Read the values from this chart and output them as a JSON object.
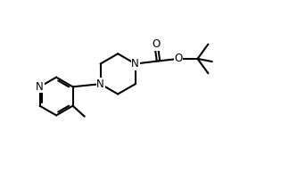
{
  "background_color": "#ffffff",
  "bond_color": "#000000",
  "bond_width": 1.5,
  "font_size": 8.5,
  "figure_width": 3.24,
  "figure_height": 1.94,
  "xlim": [
    0,
    10
  ],
  "ylim": [
    0,
    6
  ]
}
